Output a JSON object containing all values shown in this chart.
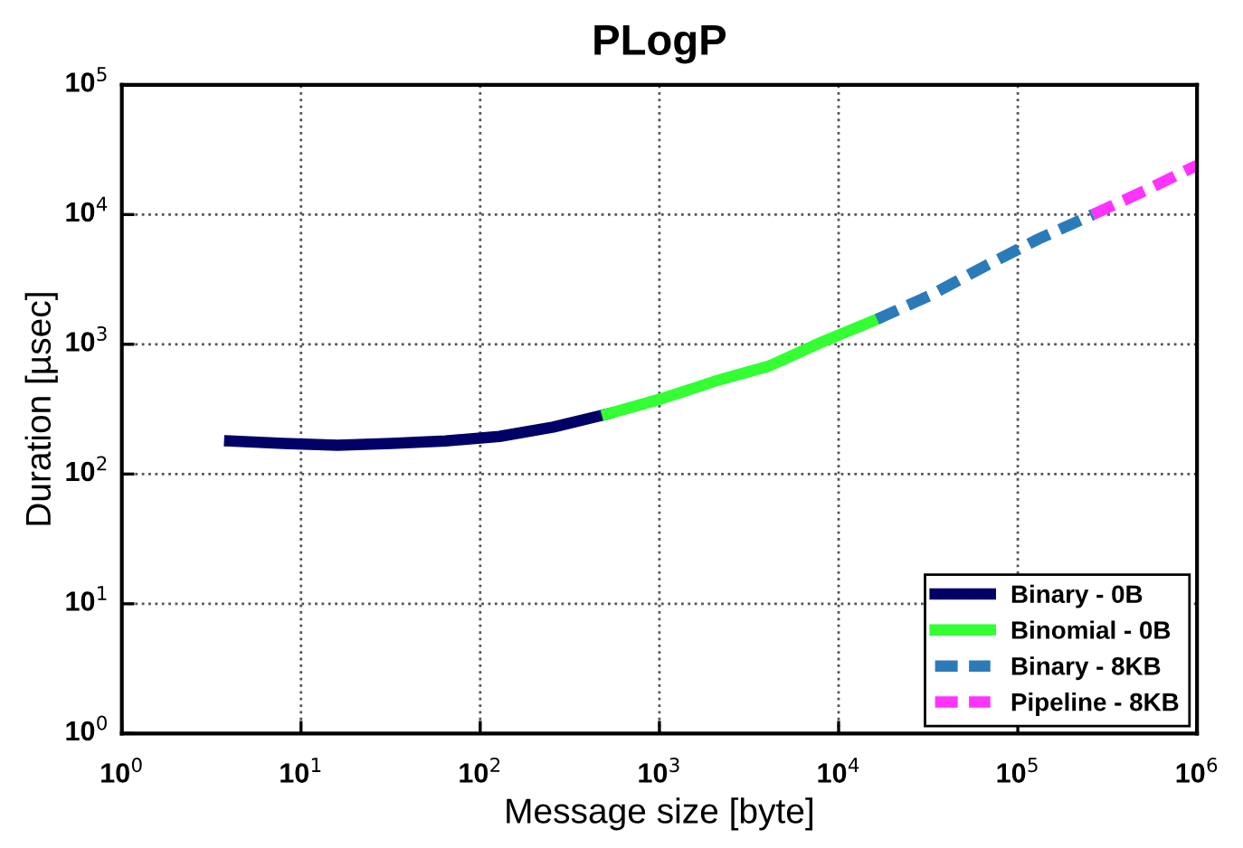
{
  "chart_data": {
    "type": "line",
    "title": "PLogP",
    "xlabel": "Message size [byte]",
    "ylabel": "Duration [µsec]",
    "log": "xy",
    "xlim": [
      1,
      1000000
    ],
    "ylim": [
      1,
      100000
    ],
    "xticks": [
      {
        "value": 1,
        "label": "10$^{0}$"
      },
      {
        "value": 10,
        "label": "10$^{1}$"
      },
      {
        "value": 100,
        "label": "10$^{2}$"
      },
      {
        "value": 1000,
        "label": "10$^{3}$"
      },
      {
        "value": 10000,
        "label": "10$^{4}$"
      },
      {
        "value": 100000,
        "label": "10$^{5}$"
      },
      {
        "value": 1000000,
        "label": "10$^{6}$"
      }
    ],
    "yticks": [
      {
        "value": 1,
        "label": "10$^{0}$"
      },
      {
        "value": 10,
        "label": "10$^{1}$"
      },
      {
        "value": 100,
        "label": "10$^{2}$"
      },
      {
        "value": 1000,
        "label": "10$^{3}$"
      },
      {
        "value": 10000,
        "label": "10$^{4}$"
      },
      {
        "value": 100000,
        "label": "10$^{5}$"
      }
    ],
    "grid": true,
    "legend": "bottom right",
    "marker": "none",
    "series": [
      {
        "name": "Binary - 0B",
        "color": "#000066",
        "line_style": "solid",
        "x": [
          4,
          8,
          16,
          32,
          64,
          128,
          256,
          512
        ],
        "values": [
          180,
          172,
          167,
          172,
          180,
          195,
          230,
          290
        ]
      },
      {
        "name": "Binomial - 0B",
        "color": "#33ff33",
        "line_style": "solid",
        "x": [
          512,
          1024,
          2048,
          4096,
          8192,
          16384
        ],
        "values": [
          290,
          380,
          520,
          680,
          1050,
          1560
        ]
      },
      {
        "name": "Binary - 8KB",
        "color": "#2b7bb9",
        "line_style": "dashed",
        "x": [
          16384,
          32768,
          65536,
          131072,
          262144
        ],
        "values": [
          1560,
          2400,
          4000,
          6500,
          10000
        ]
      },
      {
        "name": "Pipeline - 8KB",
        "color": "#ff33ff",
        "line_style": "dashed",
        "x": [
          262144,
          524288,
          1000000
        ],
        "values": [
          10000,
          15500,
          24000
        ]
      }
    ]
  }
}
